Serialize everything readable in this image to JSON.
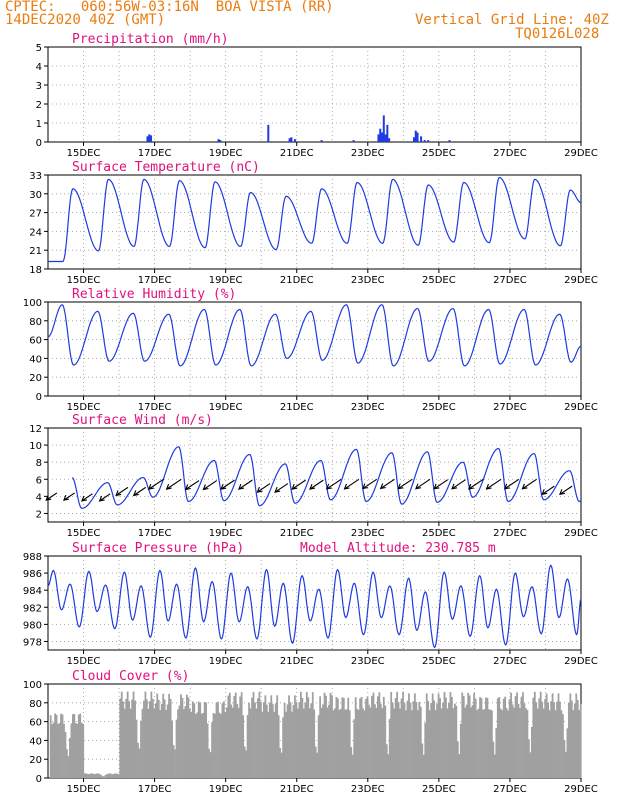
{
  "header": {
    "line1_left": "CPTEC:   060:56W-03:16N  BOA VISTA (RR)",
    "line2_left": "14DEC2020 40Z (GMT)",
    "line2_right": "Vertical Grid Line: 40Z",
    "line3_right": "TQ0126L028"
  },
  "colors": {
    "header": "#e87d12",
    "panel_title": "#e0107f",
    "line": "#1f3be0",
    "bar": "#1f3be0",
    "cloud": "#a0a0a0"
  },
  "chart_data": [
    {
      "type": "bar",
      "title": "Precipitation (mm/h)",
      "xlabel": "",
      "ylabel": "",
      "x_tick_labels": [
        "15DEC",
        "17DEC",
        "19DEC",
        "21DEC",
        "23DEC",
        "25DEC",
        "27DEC",
        "29DEC"
      ],
      "xlim_days": [
        14,
        29
      ],
      "ylim": [
        0,
        5
      ],
      "y_ticks": [
        0,
        1,
        2,
        3,
        4,
        5
      ],
      "grid": true,
      "x": [
        16.8,
        16.85,
        16.9,
        18.8,
        18.85,
        20.2,
        20.8,
        20.85,
        20.95,
        21.7,
        22.6,
        23.3,
        23.35,
        23.4,
        23.45,
        23.5,
        23.55,
        23.6,
        24.3,
        24.35,
        24.4,
        24.5,
        24.6,
        24.7,
        25.3
      ],
      "values": [
        0.3,
        0.4,
        0.35,
        0.15,
        0.1,
        0.9,
        0.2,
        0.25,
        0.15,
        0.1,
        0.1,
        0.4,
        0.7,
        0.5,
        1.4,
        0.4,
        0.9,
        0.2,
        0.25,
        0.6,
        0.5,
        0.3,
        0.1,
        0.1,
        0.1
      ]
    },
    {
      "type": "line",
      "title": "Surface Temperature (nC)",
      "x_tick_labels": [
        "15DEC",
        "17DEC",
        "19DEC",
        "21DEC",
        "23DEC",
        "25DEC",
        "27DEC",
        "29DEC"
      ],
      "xlim_days": [
        14,
        29
      ],
      "ylim": [
        18,
        33
      ],
      "y_ticks": [
        18,
        21,
        24,
        27,
        30,
        33
      ],
      "grid": true,
      "daily_max": [
        30.8,
        32.3,
        32.3,
        32.1,
        31.9,
        30.2,
        29.6,
        30.8,
        31.8,
        32.3,
        31.4,
        31.8,
        32.6,
        32.3,
        30.6
      ],
      "daily_min": [
        19.2,
        20.9,
        21.6,
        21.6,
        21.4,
        21.6,
        21.1,
        22.1,
        22.1,
        22.1,
        21.8,
        22.3,
        22.2,
        22.8,
        21.7
      ],
      "end_value": 28.6
    },
    {
      "type": "line",
      "title": "Relative Humidity (%)",
      "x_tick_labels": [
        "15DEC",
        "17DEC",
        "19DEC",
        "21DEC",
        "23DEC",
        "25DEC",
        "27DEC",
        "29DEC"
      ],
      "xlim_days": [
        14,
        29
      ],
      "ylim": [
        0,
        100
      ],
      "y_ticks": [
        0,
        20,
        40,
        60,
        80,
        100
      ],
      "grid": true,
      "start_value": 63,
      "daily_max": [
        97,
        90,
        88,
        87,
        92,
        92,
        87,
        90,
        97,
        97,
        93,
        93,
        92,
        92,
        87
      ],
      "daily_min": [
        33,
        37,
        37,
        32,
        33,
        32,
        40,
        38,
        35,
        32,
        37,
        32,
        34,
        33,
        36
      ],
      "end_value": 53
    },
    {
      "type": "line",
      "title": "Surface Wind (m/s)",
      "x_tick_labels": [
        "15DEC",
        "17DEC",
        "19DEC",
        "21DEC",
        "23DEC",
        "25DEC",
        "27DEC",
        "29DEC"
      ],
      "xlim_days": [
        14,
        29
      ],
      "ylim": [
        1,
        12
      ],
      "y_ticks": [
        2,
        4,
        6,
        8,
        10,
        12
      ],
      "grid": true,
      "daily_max": [
        6.2,
        5.6,
        6.2,
        9.8,
        8.2,
        8.9,
        7.8,
        8.2,
        9.5,
        9.1,
        9.2,
        8.0,
        9.6,
        9.0,
        7.0
      ],
      "daily_min": [
        2.6,
        3.0,
        3.9,
        3.4,
        3.5,
        2.9,
        3.2,
        3.6,
        3.4,
        3.1,
        3.3,
        3.9,
        3.4,
        3.6,
        3.4
      ],
      "end_value": 3.5,
      "wind_arrows": "black arrows pointing west-southwest (easterly trade winds), plotted every ~6h along the speed line"
    },
    {
      "type": "line",
      "title": "Surface Pressure (hPa)",
      "annotation": "Model Altitude: 230.785 m",
      "x_tick_labels": [
        "15DEC",
        "17DEC",
        "19DEC",
        "21DEC",
        "23DEC",
        "25DEC",
        "27DEC",
        "29DEC"
      ],
      "xlim_days": [
        14,
        29
      ],
      "ylim": [
        977,
        988
      ],
      "y_ticks": [
        978,
        980,
        982,
        984,
        986,
        988
      ],
      "grid": true,
      "start_value": 984.5,
      "semidiurnal_highs": [
        986.3,
        986.2,
        986.1,
        986.3,
        986.6,
        986.0,
        986.4,
        985.7,
        986.4,
        986.1,
        985.4,
        986.1,
        985.7,
        986.0,
        986.9
      ],
      "semidiurnal_lows": [
        979.7,
        979.5,
        978.5,
        978.4,
        978.3,
        978.3,
        977.8,
        978.4,
        978.8,
        978.8,
        977.3,
        978.6,
        977.6,
        978.9,
        978.8
      ],
      "end_value": 983.0
    },
    {
      "type": "bar",
      "title": "Cloud Cover (%)",
      "x_tick_labels": [
        "15DEC",
        "17DEC",
        "19DEC",
        "21DEC",
        "23DEC",
        "25DEC",
        "27DEC",
        "29DEC"
      ],
      "xlim_days": [
        14,
        29
      ],
      "ylim": [
        0,
        100
      ],
      "y_ticks": [
        0,
        20,
        40,
        60,
        80,
        100
      ],
      "grid": true,
      "daily_cover": [
        70,
        5,
        92,
        90,
        83,
        92,
        88,
        92,
        88,
        92,
        90,
        92,
        88,
        92,
        90
      ],
      "notes": "grey bars, high cover most days with short clear gaps in early afternoon"
    }
  ]
}
